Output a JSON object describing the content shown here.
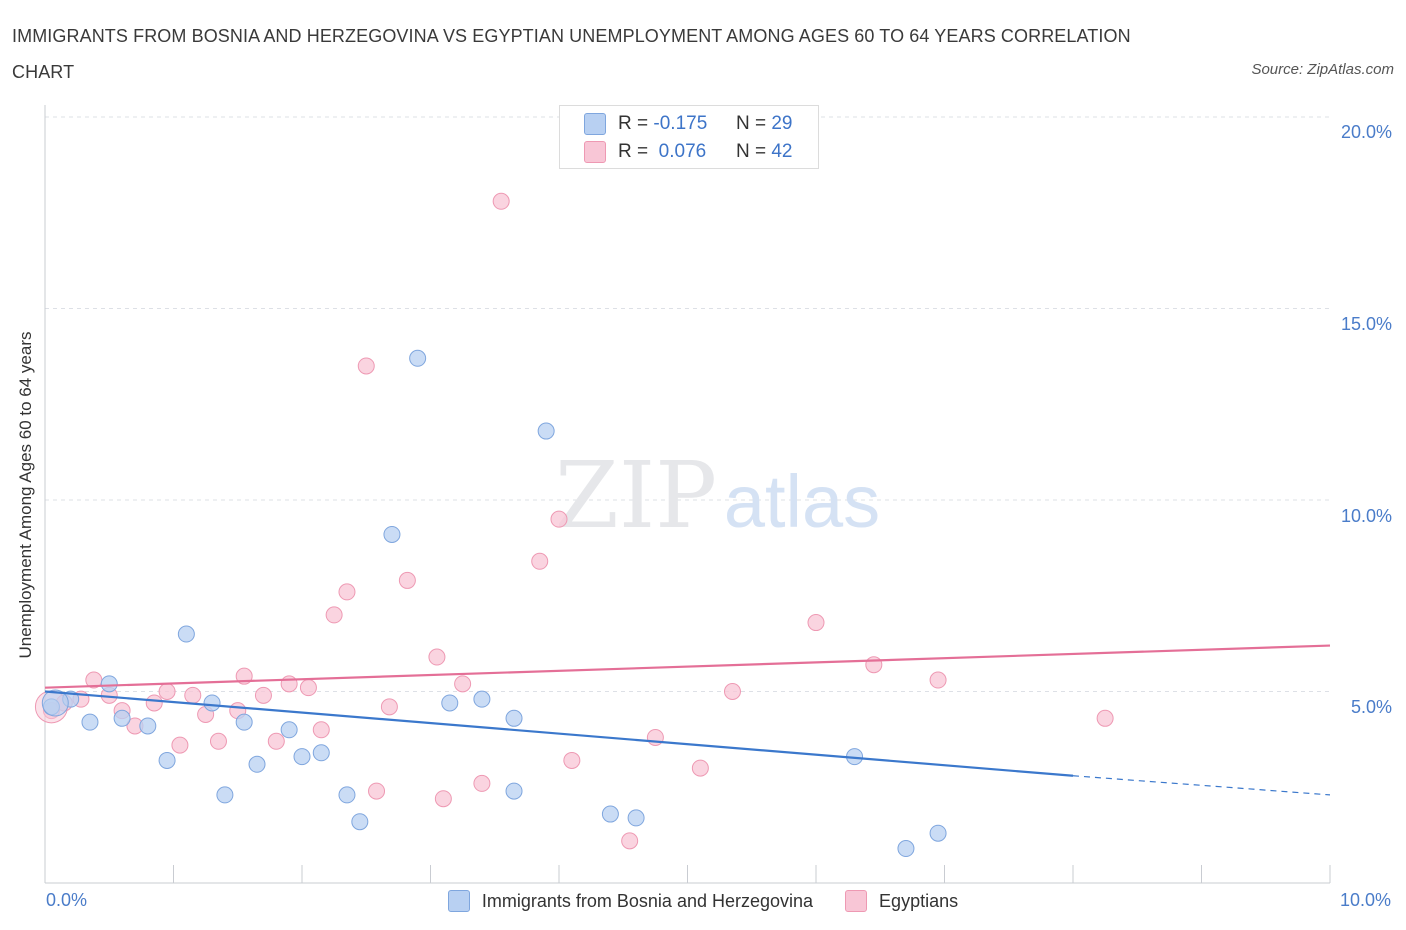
{
  "title": "IMMIGRANTS FROM BOSNIA AND HERZEGOVINA VS EGYPTIAN UNEMPLOYMENT AMONG AGES 60 TO 64 YEARS CORRELATION CHART",
  "source": "Source: ZipAtlas.com",
  "watermark": {
    "zip": "ZIP",
    "atlas": "atlas"
  },
  "colors": {
    "blue_fill": "#b8d0f2",
    "blue_stroke": "#7fa6de",
    "blue_line": "#3b78cc",
    "pink_fill": "#f8c6d6",
    "pink_stroke": "#ee99b3",
    "pink_line": "#e46f97",
    "axis_text": "#4a7cc9",
    "grid": "#dde0e6"
  },
  "legend": {
    "rows": [
      {
        "r_label": "R =",
        "r_value": "-0.175",
        "n_label": "N =",
        "n_value": "29"
      },
      {
        "r_label": "R =",
        "r_value": " 0.076",
        "n_label": "N =",
        "n_value": "42"
      }
    ]
  },
  "bottom_legend": [
    "Immigrants from Bosnia and Herzegovina",
    "Egyptians"
  ],
  "x_ticks": {
    "left": "0.0%",
    "right": "10.0%"
  },
  "y_ticks": [
    "20.0%",
    "15.0%",
    "10.0%",
    "5.0%"
  ],
  "chart_data": {
    "type": "scatter",
    "title": "IMMIGRANTS FROM BOSNIA AND HERZEGOVINA VS EGYPTIAN UNEMPLOYMENT AMONG AGES 60 TO 64 YEARS CORRELATION CHART",
    "xlabel": "",
    "ylabel": "Unemployment Among Ages 60 to 64 years",
    "xlim": [
      0,
      10
    ],
    "ylim": [
      0,
      20
    ],
    "grid": true,
    "legend_position": "top-center",
    "series": [
      {
        "name": "Immigrants from Bosnia and Herzegovina",
        "r": -0.175,
        "n": 29,
        "trend": {
          "x_start": 0,
          "y_start": 5.0,
          "x_end": 8.0,
          "y_end": 2.8,
          "dashed_to_x": 10.0,
          "dashed_y_end": 2.3
        },
        "points": [
          [
            0.05,
            4.6
          ],
          [
            0.2,
            4.8
          ],
          [
            0.35,
            4.2
          ],
          [
            0.5,
            5.2
          ],
          [
            0.6,
            4.3
          ],
          [
            0.8,
            4.1
          ],
          [
            0.95,
            3.2
          ],
          [
            1.1,
            6.5
          ],
          [
            1.3,
            4.7
          ],
          [
            1.4,
            2.3
          ],
          [
            1.55,
            4.2
          ],
          [
            1.65,
            3.1
          ],
          [
            1.9,
            4.0
          ],
          [
            2.0,
            3.3
          ],
          [
            2.15,
            3.4
          ],
          [
            2.35,
            2.3
          ],
          [
            2.45,
            1.6
          ],
          [
            2.7,
            9.1
          ],
          [
            2.9,
            13.7
          ],
          [
            3.15,
            4.7
          ],
          [
            3.4,
            4.8
          ],
          [
            3.65,
            4.3
          ],
          [
            3.65,
            2.4
          ],
          [
            3.9,
            11.8
          ],
          [
            4.4,
            1.8
          ],
          [
            4.6,
            1.7
          ],
          [
            6.3,
            3.3
          ],
          [
            6.7,
            0.9
          ],
          [
            6.95,
            1.3
          ]
        ]
      },
      {
        "name": "Egyptians",
        "r": 0.076,
        "n": 42,
        "trend": {
          "x_start": 0,
          "y_start": 5.1,
          "x_end": 10.0,
          "y_end": 6.2
        },
        "points": [
          [
            0.05,
            4.5
          ],
          [
            0.15,
            4.7
          ],
          [
            0.28,
            4.8
          ],
          [
            0.38,
            5.3
          ],
          [
            0.5,
            4.9
          ],
          [
            0.6,
            4.5
          ],
          [
            0.7,
            4.1
          ],
          [
            0.85,
            4.7
          ],
          [
            0.95,
            5.0
          ],
          [
            1.05,
            3.6
          ],
          [
            1.15,
            4.9
          ],
          [
            1.25,
            4.4
          ],
          [
            1.35,
            3.7
          ],
          [
            1.5,
            4.5
          ],
          [
            1.55,
            5.4
          ],
          [
            1.7,
            4.9
          ],
          [
            1.8,
            3.7
          ],
          [
            1.9,
            5.2
          ],
          [
            2.05,
            5.1
          ],
          [
            2.15,
            4.0
          ],
          [
            2.25,
            7.0
          ],
          [
            2.35,
            7.6
          ],
          [
            2.5,
            13.5
          ],
          [
            2.58,
            2.4
          ],
          [
            2.68,
            4.6
          ],
          [
            2.82,
            7.9
          ],
          [
            3.05,
            5.9
          ],
          [
            3.1,
            2.2
          ],
          [
            3.25,
            5.2
          ],
          [
            3.4,
            2.6
          ],
          [
            3.55,
            17.8
          ],
          [
            3.85,
            8.4
          ],
          [
            4.0,
            9.5
          ],
          [
            4.1,
            3.2
          ],
          [
            4.55,
            1.1
          ],
          [
            4.75,
            3.8
          ],
          [
            5.1,
            3.0
          ],
          [
            5.35,
            5.0
          ],
          [
            6.0,
            6.8
          ],
          [
            6.45,
            5.7
          ],
          [
            6.95,
            5.3
          ],
          [
            8.25,
            4.3
          ]
        ]
      }
    ]
  }
}
